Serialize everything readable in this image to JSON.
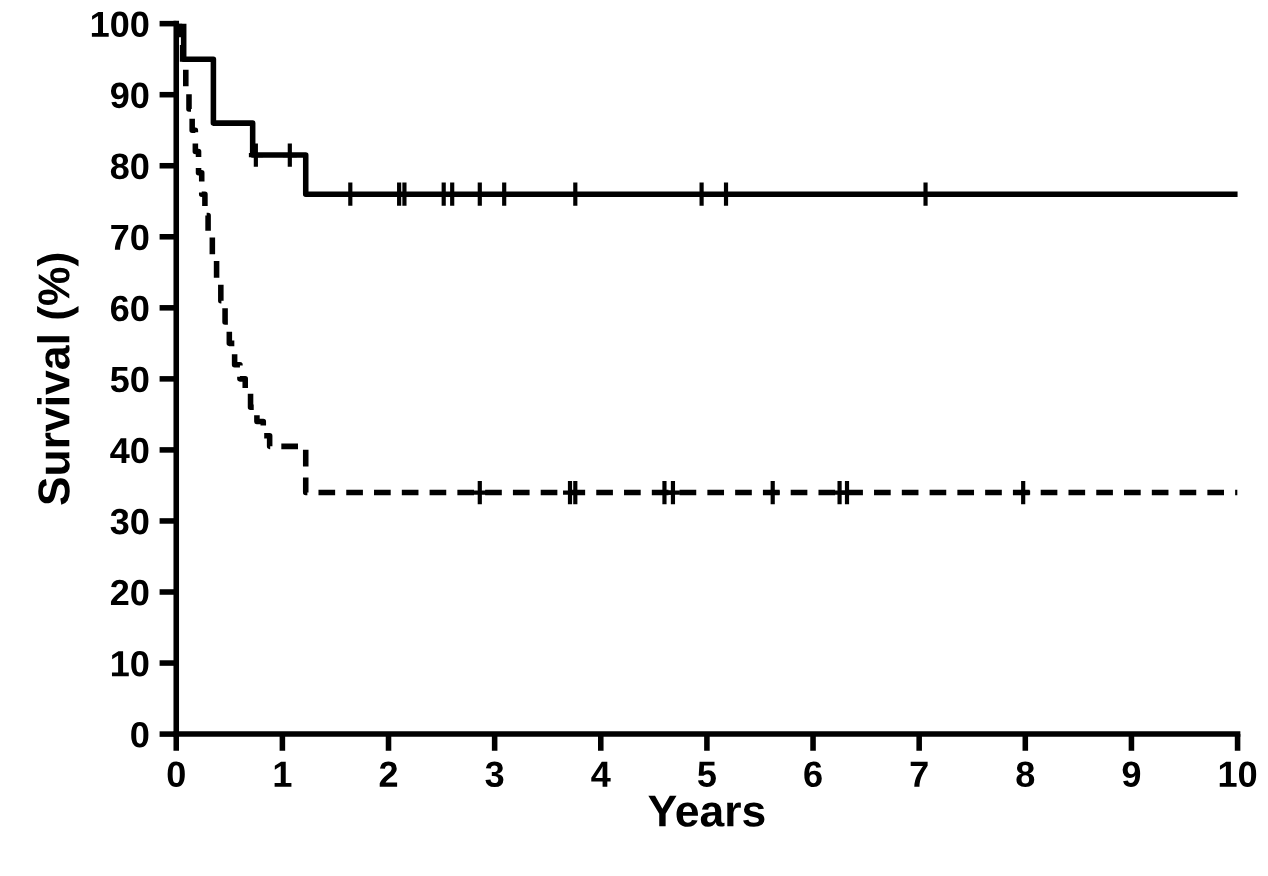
{
  "chart_data": {
    "type": "step",
    "xlabel": "Years",
    "ylabel": "Survival (%)",
    "xlim": [
      0,
      10
    ],
    "ylim": [
      0,
      100
    ],
    "xticks": [
      0,
      1,
      2,
      3,
      4,
      5,
      6,
      7,
      8,
      9,
      10
    ],
    "yticks": [
      0,
      10,
      20,
      30,
      40,
      50,
      60,
      70,
      80,
      90,
      100
    ],
    "grid": false,
    "series": [
      {
        "color": "#000000",
        "line_style": "solid",
        "x": [
          0,
          0.07,
          0.35,
          0.72,
          1.22,
          10
        ],
        "values": [
          100,
          95,
          86,
          81.5,
          76,
          76
        ]
      },
      {
        "color": "#000000",
        "line_style": "dashed",
        "x": [
          0,
          0.03,
          0.06,
          0.09,
          0.12,
          0.15,
          0.18,
          0.21,
          0.24,
          0.27,
          0.3,
          0.34,
          0.38,
          0.42,
          0.46,
          0.5,
          0.55,
          0.6,
          0.65,
          0.7,
          0.76,
          0.82,
          0.88,
          0.94,
          1.22,
          10
        ],
        "values": [
          100,
          97,
          94,
          91,
          88,
          85,
          82,
          79,
          76,
          73,
          70,
          67,
          64,
          61,
          58,
          55,
          52,
          50,
          48,
          46,
          44,
          42,
          40.5,
          40.5,
          34,
          34
        ]
      },
      {
        "type": "scatter",
        "color": "#000000",
        "x": [
          0.75,
          1.07,
          1.64,
          2.1,
          2.15,
          2.52,
          2.6,
          2.86,
          3.09,
          3.76,
          4.95,
          5.18,
          7.06
        ],
        "values": [
          81.5,
          81.5,
          76,
          76,
          76,
          76,
          76,
          76,
          76,
          76,
          76,
          76,
          76
        ]
      },
      {
        "type": "scatter",
        "color": "#000000",
        "x": [
          2.86,
          3.71,
          3.76,
          4.6,
          4.68,
          5.62,
          6.25,
          6.32,
          7.98
        ],
        "values": [
          34,
          34,
          34,
          34,
          34,
          34,
          34,
          34,
          34
        ]
      }
    ]
  }
}
